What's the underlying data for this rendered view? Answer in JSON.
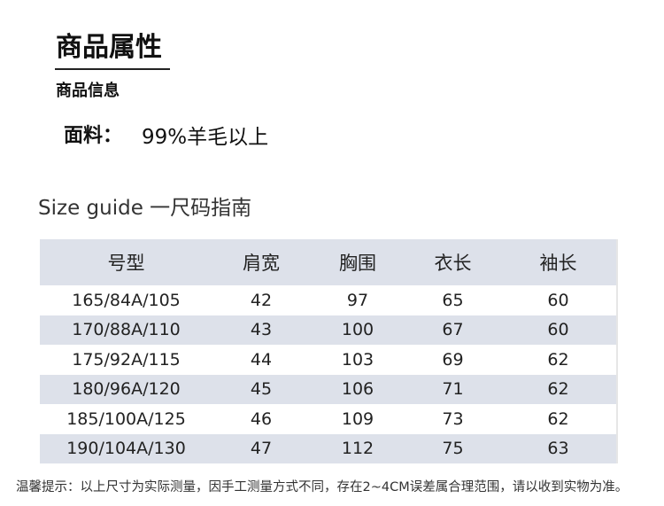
{
  "title": "商品属性",
  "subtitle": "商品信息",
  "fabric": {
    "label": "面料：",
    "value": "99%羊毛以上"
  },
  "size_guide_title": "Size guide 一尺码指南",
  "table": {
    "headers": [
      "号型",
      "肩宽",
      "胸围",
      "衣长",
      "袖长"
    ],
    "rows": [
      [
        "165/84A/105",
        "42",
        "97",
        "65",
        "60"
      ],
      [
        "170/88A/110",
        "43",
        "100",
        "67",
        "60"
      ],
      [
        "175/92A/115",
        "44",
        "103",
        "69",
        "62"
      ],
      [
        "180/96A/120",
        "45",
        "106",
        "71",
        "62"
      ],
      [
        "185/100A/125",
        "46",
        "109",
        "73",
        "62"
      ],
      [
        "190/104A/130",
        "47",
        "112",
        "75",
        "63"
      ]
    ]
  },
  "note": "温馨提示：以上尺寸为实际测量，因手工测量方式不同，存在2~4CM误差属合理范围，请以收到实物为准。"
}
